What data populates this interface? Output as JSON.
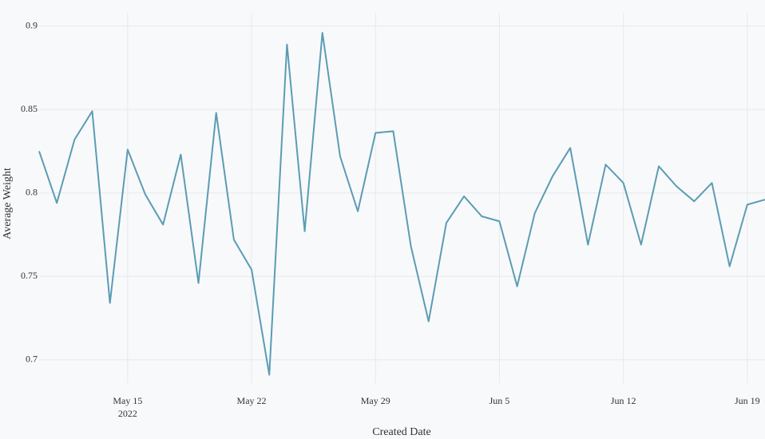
{
  "chart_data": {
    "type": "line",
    "x_label": "Created Date",
    "y_label": "Average Weight",
    "x": [
      "2022-05-10",
      "2022-05-11",
      "2022-05-12",
      "2022-05-13",
      "2022-05-14",
      "2022-05-15",
      "2022-05-16",
      "2022-05-17",
      "2022-05-18",
      "2022-05-19",
      "2022-05-20",
      "2022-05-21",
      "2022-05-22",
      "2022-05-23",
      "2022-05-24",
      "2022-05-25",
      "2022-05-26",
      "2022-05-27",
      "2022-05-28",
      "2022-05-29",
      "2022-05-30",
      "2022-05-31",
      "2022-06-01",
      "2022-06-02",
      "2022-06-03",
      "2022-06-04",
      "2022-06-05",
      "2022-06-06",
      "2022-06-07",
      "2022-06-08",
      "2022-06-09",
      "2022-06-10",
      "2022-06-11",
      "2022-06-12",
      "2022-06-13",
      "2022-06-14",
      "2022-06-15",
      "2022-06-16",
      "2022-06-17",
      "2022-06-18",
      "2022-06-19",
      "2022-06-20"
    ],
    "series": [
      {
        "color": "#5b9cb4",
        "values": [
          0.825,
          0.794,
          0.832,
          0.849,
          0.734,
          0.826,
          0.799,
          0.781,
          0.823,
          0.746,
          0.848,
          0.772,
          0.754,
          0.691,
          0.889,
          0.777,
          0.896,
          0.822,
          0.789,
          0.836,
          0.837,
          0.768,
          0.723,
          0.782,
          0.798,
          0.786,
          0.783,
          0.744,
          0.788,
          0.81,
          0.827,
          0.769,
          0.817,
          0.806,
          0.769,
          0.816,
          0.804,
          0.795,
          0.806,
          0.756,
          0.793,
          0.796
        ]
      }
    ],
    "xlim": [
      "2022-05-10",
      "2022-06-20"
    ],
    "xticks": [
      {
        "value": "2022-05-15",
        "label": "May 15"
      },
      {
        "value": "2022-05-22",
        "label": "May 22"
      },
      {
        "value": "2022-05-29",
        "label": "May 29"
      },
      {
        "value": "2022-06-05",
        "label": "Jun 5"
      },
      {
        "value": "2022-06-12",
        "label": "Jun 12"
      },
      {
        "value": "2022-06-19",
        "label": "Jun 19"
      }
    ],
    "x_year_label": "2022",
    "ylim": [
      0.686,
      0.908
    ],
    "yticks": [
      0.7,
      0.75,
      0.8,
      0.85,
      0.9
    ],
    "grid": true
  }
}
